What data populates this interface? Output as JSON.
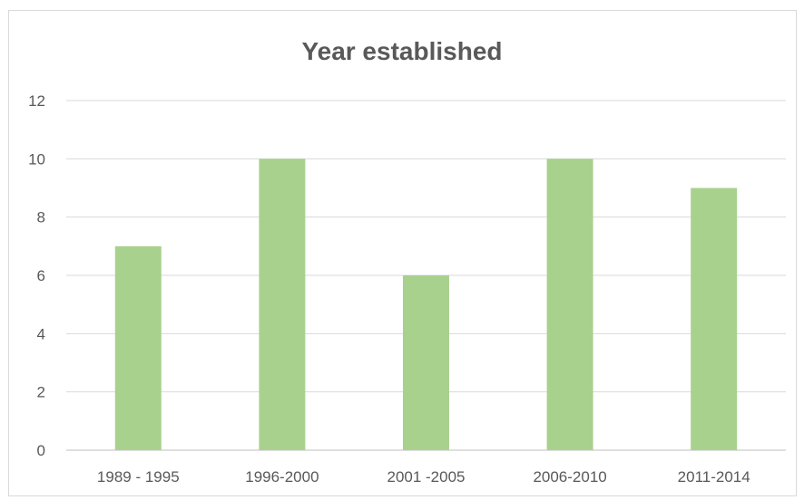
{
  "chart_data": {
    "type": "bar",
    "title": "Year established",
    "xlabel": "",
    "ylabel": "",
    "categories": [
      "1989 - 1995",
      "1996-2000",
      "2001 -2005",
      "2006-2010",
      "2011-2014"
    ],
    "values": [
      7,
      10,
      6,
      10,
      9
    ],
    "ylim": [
      0,
      12
    ],
    "yticks": [
      "0",
      "2",
      "4",
      "6",
      "8",
      "10",
      "12"
    ],
    "grid": true,
    "legend": "none"
  },
  "colors": {
    "bar": "#A9D18E",
    "gridline": "#D9D9D9",
    "axis_line": "#BFBFBF",
    "tick_label": "#595959",
    "title": "#595959",
    "border": "#D9D9D9"
  }
}
